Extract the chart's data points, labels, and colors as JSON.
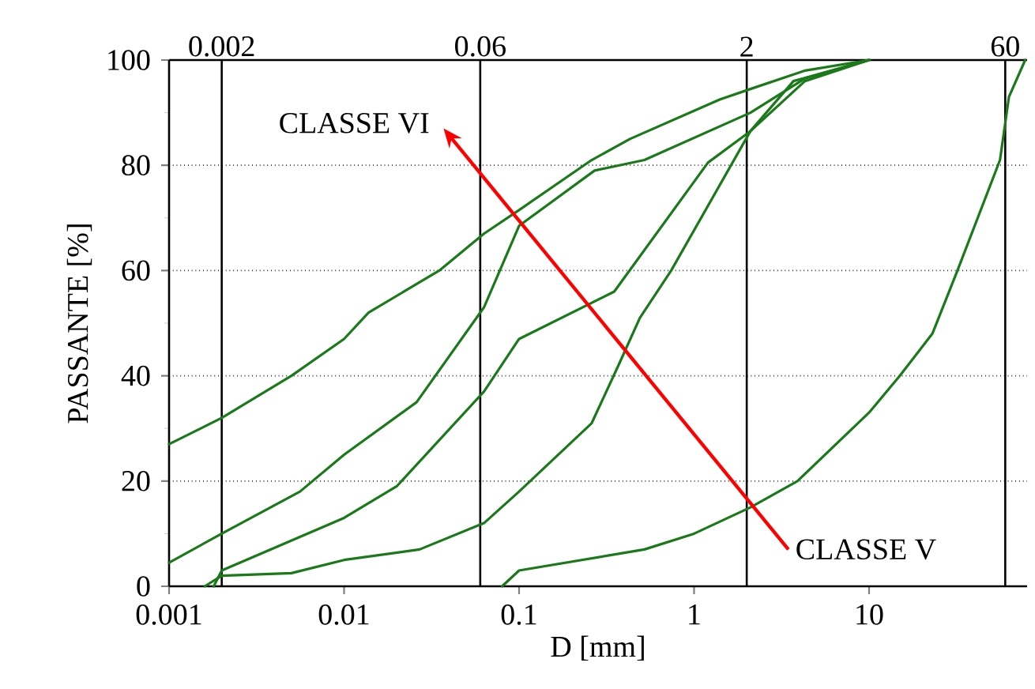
{
  "chart_data": {
    "type": "line",
    "xlabel": "D [mm]",
    "ylabel": "PASSANTE [%]",
    "log": "x",
    "grid": "y",
    "xlim": [
      0.001,
      80
    ],
    "xticks": [
      0.001,
      0.01,
      0.1,
      1,
      10
    ],
    "ref_lines": [
      {
        "axis": "x",
        "value": 0.002,
        "label": "0.002"
      },
      {
        "axis": "x",
        "value": 0.06,
        "label": "0.06"
      },
      {
        "axis": "x",
        "value": 2,
        "label": "2"
      },
      {
        "axis": "x",
        "value": 60,
        "label": "60"
      }
    ],
    "ylim": [
      0,
      100
    ],
    "yticks": [
      0,
      20,
      40,
      60,
      80,
      100
    ],
    "annotations": [
      "CLASSE VI",
      "CLASSE V"
    ],
    "series": [
      {
        "color": "#1a7a1a",
        "x": [
          0.001,
          0.002,
          0.005,
          0.01,
          0.0138,
          0.035,
          0.063,
          0.1,
          0.26,
          0.43,
          1.4,
          2.1,
          4.3,
          10
        ],
        "values": [
          27,
          32,
          40,
          47,
          52,
          60,
          67,
          71.5,
          81,
          85,
          92.5,
          94.5,
          98,
          100
        ]
      },
      {
        "color": "#1a7a1a",
        "x": [
          0.001,
          0.002,
          0.0056,
          0.01,
          0.026,
          0.063,
          0.1,
          0.27,
          0.52,
          2.1,
          4.3,
          10
        ],
        "values": [
          4.5,
          10,
          18,
          25,
          35,
          53,
          68.5,
          79,
          81,
          90,
          96.5,
          100
        ]
      },
      {
        "color": "#1a7a1a",
        "x": [
          0.0018,
          0.002,
          0.01,
          0.02,
          0.063,
          0.1,
          0.35,
          1.2,
          2.1,
          3.7,
          10
        ],
        "values": [
          0,
          3,
          13,
          19,
          37,
          47,
          56,
          80.5,
          86.5,
          96,
          100
        ]
      },
      {
        "color": "#1a7a1a",
        "x": [
          0.0016,
          0.002,
          0.005,
          0.01,
          0.027,
          0.063,
          0.1,
          0.26,
          0.37,
          0.49,
          0.74,
          2.1,
          4.3,
          10
        ],
        "values": [
          0,
          2,
          2.5,
          5,
          7,
          12,
          18,
          31,
          42,
          51,
          60,
          86.5,
          96,
          100
        ]
      },
      {
        "color": "#1a7a1a",
        "x": [
          0.08,
          0.1,
          0.52,
          1.0,
          2.1,
          3.9,
          10,
          15,
          23,
          32,
          56,
          63,
          78
        ],
        "values": [
          0,
          3,
          7,
          10,
          15,
          20,
          33,
          40,
          48,
          60,
          81,
          93,
          100
        ]
      }
    ]
  }
}
